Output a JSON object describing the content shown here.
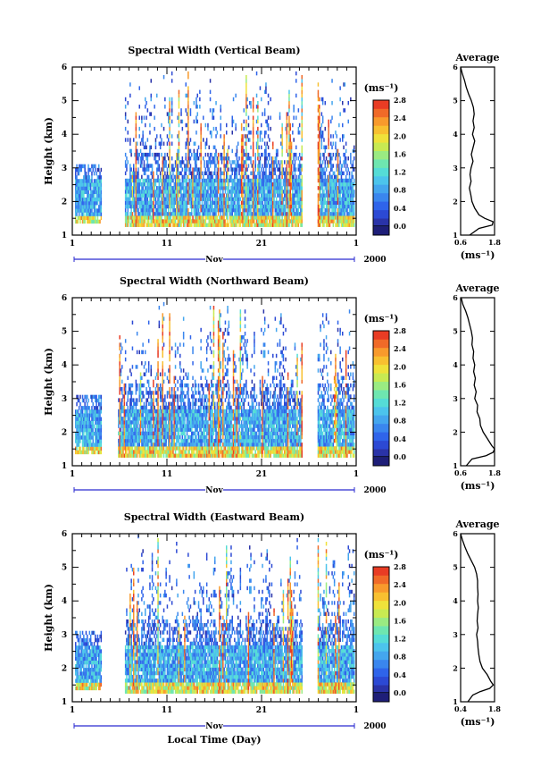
{
  "chart_data": [
    {
      "type": "heatmap",
      "title": "Spectral Width (Vertical Beam)",
      "xlabel": "",
      "ylabel": "Height (km)",
      "x_ticks": [
        "1",
        "11",
        "21",
        "1"
      ],
      "x_month": "Nov",
      "x_year": "2000",
      "xlim": [
        1,
        31
      ],
      "ylim": [
        1,
        6
      ],
      "y_ticks": [
        "1",
        "2",
        "3",
        "4",
        "5",
        "6"
      ],
      "colorbar": {
        "unit": "(ms⁻¹)",
        "range": [
          0,
          3.0
        ],
        "ticks": [
          "0.0",
          "0.4",
          "0.8",
          "1.2",
          "1.6",
          "2.0",
          "2.4",
          "2.8"
        ]
      },
      "data_gaps_days": [
        [
          4,
          6.5
        ],
        [
          25.2,
          26.8
        ]
      ],
      "profile": {
        "title": "Average",
        "xlabel": "(ms⁻¹)",
        "x_ticks": [
          "0.6",
          "1.8"
        ],
        "xlim": [
          0.6,
          1.8
        ],
        "height": [
          6.0,
          5.8,
          5.6,
          5.4,
          5.2,
          5.0,
          4.8,
          4.6,
          4.4,
          4.2,
          4.0,
          3.8,
          3.6,
          3.4,
          3.2,
          3.0,
          2.8,
          2.6,
          2.4,
          2.2,
          2.0,
          1.8,
          1.6,
          1.5,
          1.4,
          1.3,
          1.2,
          1.0
        ],
        "avg_width": [
          0.6,
          0.66,
          0.74,
          0.8,
          0.88,
          0.98,
          1.05,
          1.08,
          1.04,
          1.08,
          1.02,
          1.1,
          1.04,
          0.98,
          1.04,
          0.97,
          0.93,
          0.97,
          0.91,
          0.96,
          1.0,
          1.1,
          1.25,
          1.45,
          1.75,
          1.72,
          1.25,
          0.92
        ]
      }
    },
    {
      "type": "heatmap",
      "title": "Spectral Width (Northward Beam)",
      "xlabel": "",
      "ylabel": "Height (km)",
      "x_ticks": [
        "1",
        "11",
        "21",
        "1"
      ],
      "x_month": "Nov",
      "x_year": "2000",
      "xlim": [
        1,
        31
      ],
      "ylim": [
        1,
        6
      ],
      "y_ticks": [
        "1",
        "2",
        "3",
        "4",
        "5",
        "6"
      ],
      "colorbar": {
        "unit": "(ms⁻¹)",
        "range": [
          0,
          3.0
        ],
        "ticks": [
          "0.0",
          "0.4",
          "0.8",
          "1.2",
          "1.6",
          "2.0",
          "2.4",
          "2.8"
        ]
      },
      "data_gaps_days": [
        [
          4,
          5.8
        ],
        [
          25.2,
          26.8
        ]
      ],
      "profile": {
        "title": "Average",
        "xlabel": "(ms⁻¹)",
        "x_ticks": [
          "0.6",
          "1.8"
        ],
        "xlim": [
          0.6,
          1.8
        ],
        "height": [
          6.0,
          5.8,
          5.6,
          5.4,
          5.2,
          5.0,
          4.8,
          4.6,
          4.4,
          4.2,
          4.0,
          3.8,
          3.6,
          3.4,
          3.2,
          3.0,
          2.8,
          2.6,
          2.4,
          2.2,
          2.0,
          1.8,
          1.6,
          1.5,
          1.4,
          1.3,
          1.2,
          1.0
        ],
        "avg_width": [
          0.62,
          0.68,
          0.78,
          0.86,
          0.92,
          0.98,
          1.02,
          1.0,
          1.06,
          1.04,
          1.1,
          1.06,
          1.12,
          1.08,
          1.15,
          1.1,
          1.2,
          1.18,
          1.28,
          1.3,
          1.4,
          1.55,
          1.7,
          1.8,
          1.75,
          1.5,
          1.0,
          0.8
        ]
      }
    },
    {
      "type": "heatmap",
      "title": "Spectral Width (Eastward Beam)",
      "xlabel": "Local Time (Day)",
      "ylabel": "Height (km)",
      "x_ticks": [
        "1",
        "11",
        "21",
        "1"
      ],
      "x_month": "Nov",
      "x_year": "2000",
      "xlim": [
        1,
        31
      ],
      "ylim": [
        1,
        6
      ],
      "y_ticks": [
        "1",
        "2",
        "3",
        "4",
        "5",
        "6"
      ],
      "colorbar": {
        "unit": "(ms⁻¹)",
        "range": [
          0,
          3.0
        ],
        "ticks": [
          "0.0",
          "0.4",
          "0.8",
          "1.2",
          "1.6",
          "2.0",
          "2.4",
          "2.8"
        ]
      },
      "data_gaps_days": [
        [
          4,
          6.5
        ],
        [
          25.2,
          26.8
        ]
      ],
      "profile": {
        "title": "Average",
        "xlabel": "(ms⁻¹)",
        "x_ticks": [
          "0.4",
          "1.8"
        ],
        "xlim": [
          0.4,
          1.8
        ],
        "height": [
          6.0,
          5.8,
          5.6,
          5.4,
          5.2,
          5.0,
          4.8,
          4.6,
          4.4,
          4.2,
          4.0,
          3.8,
          3.6,
          3.4,
          3.2,
          3.0,
          2.8,
          2.6,
          2.4,
          2.2,
          2.0,
          1.8,
          1.6,
          1.5,
          1.4,
          1.3,
          1.2,
          1.0
        ],
        "avg_width": [
          0.4,
          0.48,
          0.58,
          0.7,
          0.84,
          0.98,
          1.06,
          1.1,
          1.1,
          1.12,
          1.1,
          1.13,
          1.1,
          1.08,
          1.12,
          1.06,
          1.1,
          1.12,
          1.15,
          1.2,
          1.3,
          1.5,
          1.65,
          1.75,
          1.6,
          1.2,
          0.9,
          0.7
        ]
      }
    }
  ]
}
